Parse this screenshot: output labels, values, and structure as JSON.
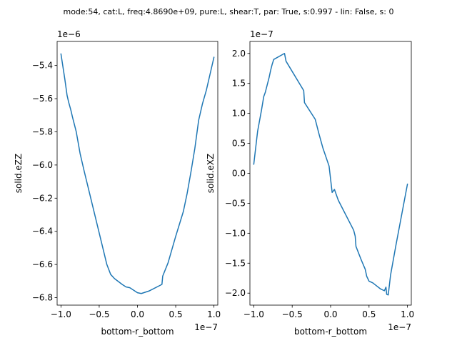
{
  "figure": {
    "suptitle": "mode:54, cat:L, freq:4.8690e+09, pure:L, shear:T, par: True, s:0.997 - lin: False, s: 0"
  },
  "colors": {
    "line": "#1f77b4",
    "axes": "#000000",
    "background": "#ffffff"
  },
  "chart_data": [
    {
      "type": "line",
      "title": "",
      "xlabel": "bottom-r_bottom",
      "ylabel": "solid.eZZ",
      "x_offset_label": "1e−7",
      "y_offset_label": "1e−6",
      "xlim": [
        -1.05,
        1.05
      ],
      "ylim": [
        -6.845,
        -5.255
      ],
      "x_scale": 1e-07,
      "y_scale": 1e-06,
      "grid": false,
      "x_ticks": [
        -1.0,
        -0.5,
        0.0,
        0.5,
        1.0
      ],
      "x_tick_labels": [
        "−1.0",
        "−0.5",
        "0.0",
        "0.5",
        "1.0"
      ],
      "y_ticks": [
        -6.8,
        -6.6,
        -6.4,
        -6.2,
        -6.0,
        -5.8,
        -5.6,
        -5.4
      ],
      "y_tick_labels": [
        "−6.8",
        "−6.6",
        "−6.4",
        "−6.2",
        "−6.0",
        "−5.8",
        "−5.6",
        "−5.4"
      ],
      "series": [
        {
          "x": [
            -1.0,
            -0.95,
            -0.92,
            -0.9,
            -0.87,
            -0.85,
            -0.8,
            -0.75,
            -0.7,
            -0.6,
            -0.5,
            -0.4,
            -0.35,
            -0.3,
            -0.2,
            -0.15,
            -0.1,
            0.0,
            0.05,
            0.15,
            0.32,
            0.33,
            0.4,
            0.5,
            0.6,
            0.65,
            0.7,
            0.75,
            0.8,
            0.85,
            0.9,
            0.95,
            1.0
          ],
          "y": [
            -5.33,
            -5.48,
            -5.58,
            -5.62,
            -5.67,
            -5.71,
            -5.8,
            -5.93,
            -6.03,
            -6.22,
            -6.41,
            -6.6,
            -6.66,
            -6.685,
            -6.72,
            -6.735,
            -6.74,
            -6.77,
            -6.775,
            -6.76,
            -6.72,
            -6.67,
            -6.59,
            -6.43,
            -6.28,
            -6.17,
            -6.04,
            -5.9,
            -5.73,
            -5.63,
            -5.55,
            -5.45,
            -5.35
          ]
        }
      ]
    },
    {
      "type": "line",
      "title": "",
      "xlabel": "bottom-r_bottom",
      "ylabel": "solid.eXZ",
      "x_offset_label": "1e−7",
      "y_offset_label": "1e−7",
      "xlim": [
        -1.05,
        1.05
      ],
      "ylim": [
        -2.2,
        2.2
      ],
      "x_scale": 1e-07,
      "y_scale": 1e-07,
      "grid": false,
      "x_ticks": [
        -1.0,
        -0.5,
        0.0,
        0.5,
        1.0
      ],
      "x_tick_labels": [
        "−1.0",
        "−0.5",
        "0.0",
        "0.5",
        "1.0"
      ],
      "y_ticks": [
        -2.0,
        -1.5,
        -1.0,
        -0.5,
        0.0,
        0.5,
        1.0,
        1.5,
        2.0
      ],
      "y_tick_labels": [
        "−2.0",
        "−1.5",
        "−1.0",
        "−0.5",
        "0.0",
        "0.5",
        "1.0",
        "1.5",
        "2.0"
      ],
      "series": [
        {
          "x": [
            -1.0,
            -0.95,
            -0.9,
            -0.87,
            -0.85,
            -0.8,
            -0.78,
            -0.76,
            -0.74,
            -0.6,
            -0.58,
            -0.35,
            -0.34,
            -0.2,
            -0.15,
            -0.1,
            -0.02,
            0.02,
            0.05,
            0.1,
            0.3,
            0.32,
            0.33,
            0.4,
            0.45,
            0.47,
            0.5,
            0.55,
            0.6,
            0.65,
            0.7,
            0.72,
            0.73,
            0.75,
            0.78,
            0.85,
            1.0
          ],
          "y": [
            0.15,
            0.7,
            1.05,
            1.28,
            1.35,
            1.6,
            1.72,
            1.82,
            1.9,
            2.0,
            1.87,
            1.38,
            1.18,
            0.9,
            0.65,
            0.42,
            0.12,
            -0.32,
            -0.27,
            -0.45,
            -0.95,
            -1.05,
            -1.22,
            -1.45,
            -1.6,
            -1.72,
            -1.8,
            -1.83,
            -1.88,
            -1.93,
            -1.96,
            -1.9,
            -2.02,
            -2.03,
            -1.7,
            -1.2,
            -0.18
          ]
        }
      ]
    }
  ]
}
